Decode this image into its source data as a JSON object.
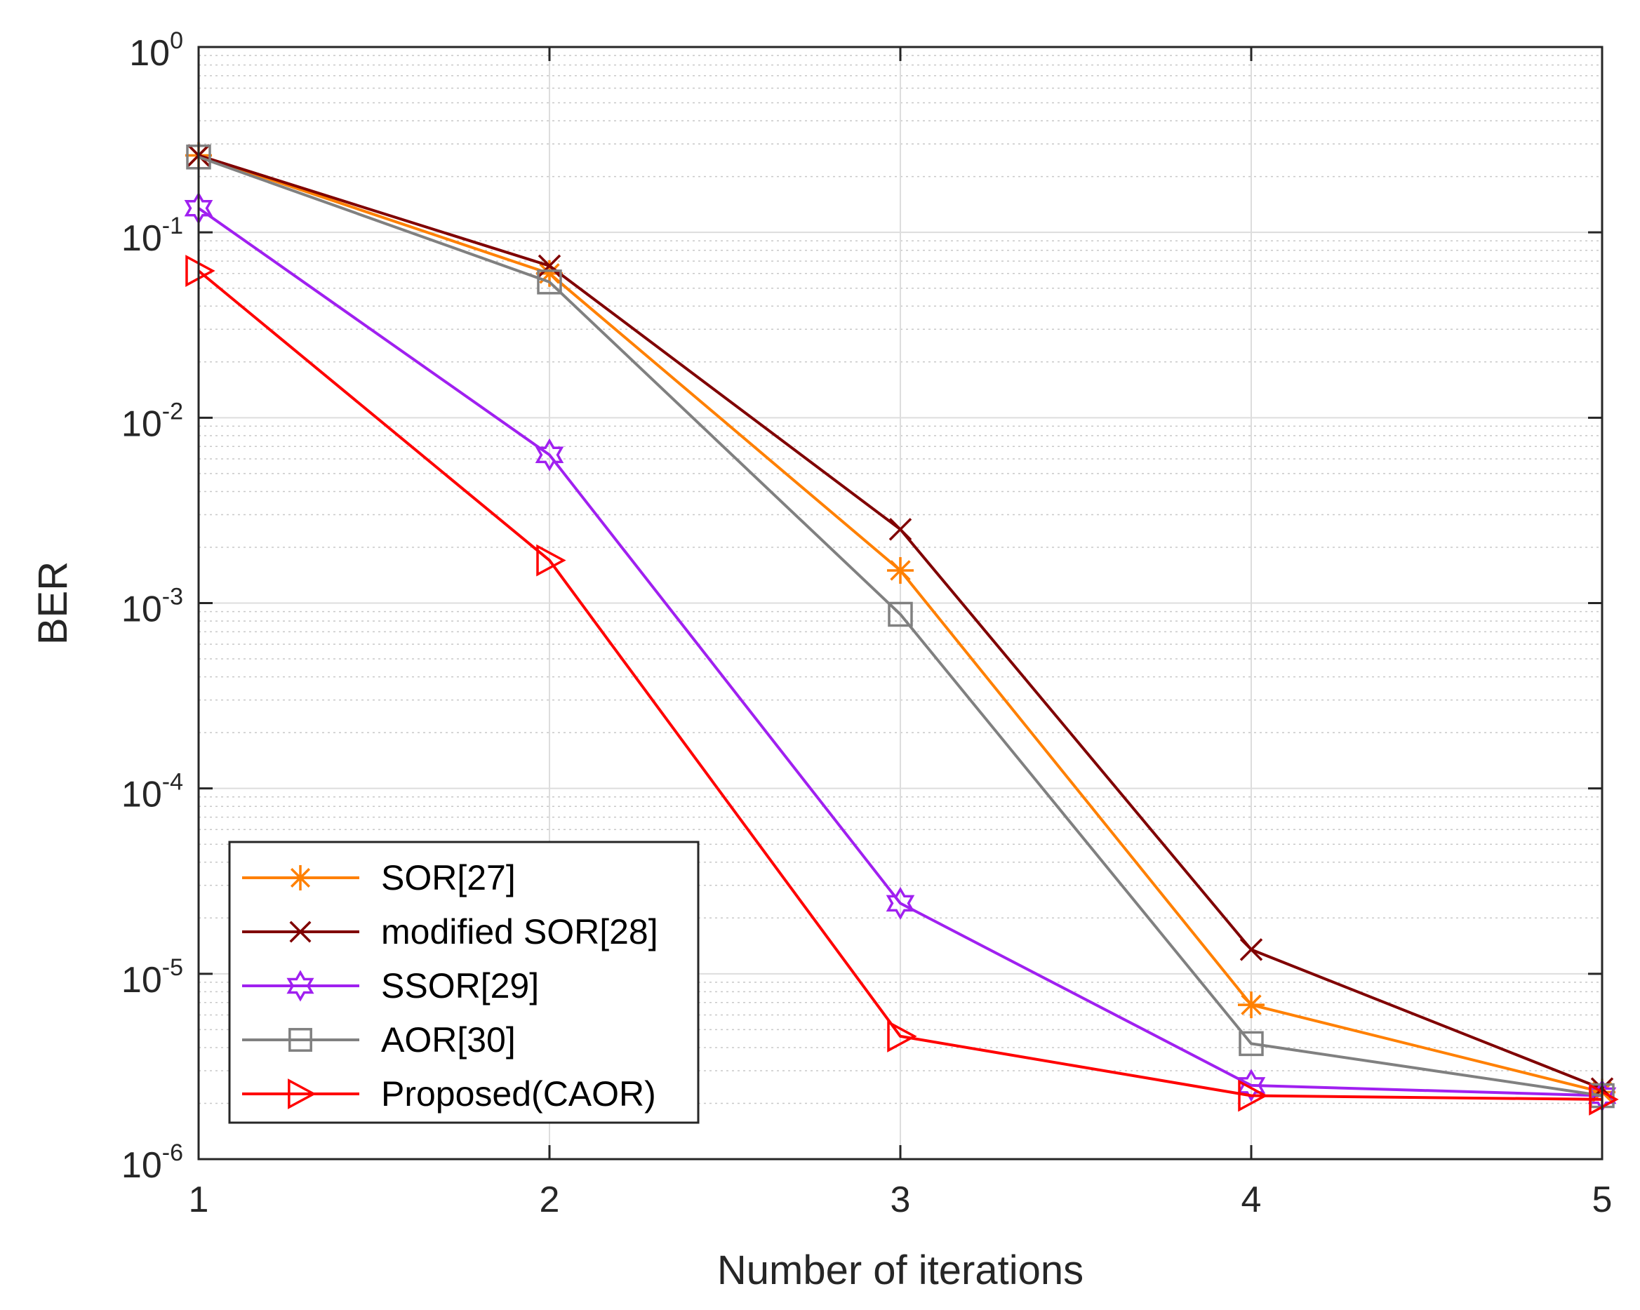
{
  "chart_data": {
    "type": "line",
    "title": "",
    "xlabel": "Number of iterations",
    "ylabel": "BER",
    "yscale": "log",
    "xlim": [
      1,
      5
    ],
    "ylim": [
      1e-06,
      1
    ],
    "x_ticks": [
      "1",
      "2",
      "3",
      "4",
      "5"
    ],
    "y_ticks": [
      {
        "value": 1e-06,
        "base": "10",
        "exp": "-6"
      },
      {
        "value": 1e-05,
        "base": "10",
        "exp": "-5"
      },
      {
        "value": 0.0001,
        "base": "10",
        "exp": "-4"
      },
      {
        "value": 0.001,
        "base": "10",
        "exp": "-3"
      },
      {
        "value": 0.01,
        "base": "10",
        "exp": "-2"
      },
      {
        "value": 0.1,
        "base": "10",
        "exp": "-1"
      },
      {
        "value": 1,
        "base": "10",
        "exp": "0"
      }
    ],
    "grid": true,
    "legend_position": "bottom-left",
    "x": [
      1,
      2,
      3,
      4,
      5
    ],
    "series": [
      {
        "name": "SOR[27]",
        "color": "#FF8000",
        "marker": "asterisk",
        "values": [
          0.26,
          0.06,
          0.0015,
          6.8e-06,
          2.3e-06
        ]
      },
      {
        "name": "modified SOR[28]",
        "color": "#800000",
        "marker": "x",
        "values": [
          0.26,
          0.066,
          0.0025,
          1.35e-05,
          2.4e-06
        ]
      },
      {
        "name": "SSOR[29]",
        "color": "#A020F0",
        "marker": "hexagram",
        "values": [
          0.135,
          0.0063,
          2.4e-05,
          2.5e-06,
          2.2e-06
        ]
      },
      {
        "name": "AOR[30]",
        "color": "#808080",
        "marker": "square",
        "values": [
          0.255,
          0.054,
          0.00087,
          4.2e-06,
          2.2e-06
        ]
      },
      {
        "name": "Proposed(CAOR)",
        "color": "#FF0000",
        "marker": "triangle-right",
        "values": [
          0.062,
          0.0017,
          4.6e-06,
          2.2e-06,
          2.1e-06
        ]
      }
    ]
  }
}
